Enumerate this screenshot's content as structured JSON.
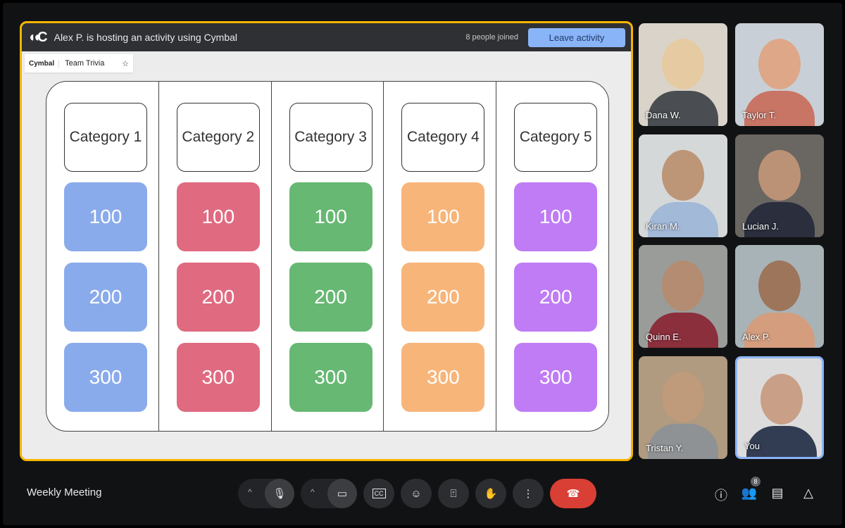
{
  "activity": {
    "host_text": "Alex P. is hosting an activity using Cymbal",
    "joined": "8 people joined",
    "leave_label": "Leave activity",
    "accent": "#f7b500"
  },
  "app": {
    "brand": "Cymbal",
    "name": "Team Trivia"
  },
  "board": {
    "columns": [
      {
        "category": "Category 1",
        "color": "#8aabeb",
        "values": [
          "100",
          "200",
          "300"
        ]
      },
      {
        "category": "Category 2",
        "color": "#e06a80",
        "values": [
          "100",
          "200",
          "300"
        ]
      },
      {
        "category": "Category 3",
        "color": "#66b872",
        "values": [
          "100",
          "200",
          "300"
        ]
      },
      {
        "category": "Category 4",
        "color": "#f8b57a",
        "values": [
          "100",
          "200",
          "300"
        ]
      },
      {
        "category": "Category 5",
        "color": "#bf7cf4",
        "values": [
          "100",
          "200",
          "300"
        ]
      }
    ]
  },
  "participants": [
    {
      "name": "Dana W."
    },
    {
      "name": "Taylor T."
    },
    {
      "name": "Kiran M."
    },
    {
      "name": "Lucian J."
    },
    {
      "name": "Quinn E."
    },
    {
      "name": "Alex P."
    },
    {
      "name": "Tristan Y."
    },
    {
      "name": "You"
    }
  ],
  "meeting": {
    "title": "Weekly Meeting",
    "people_count": "8"
  }
}
